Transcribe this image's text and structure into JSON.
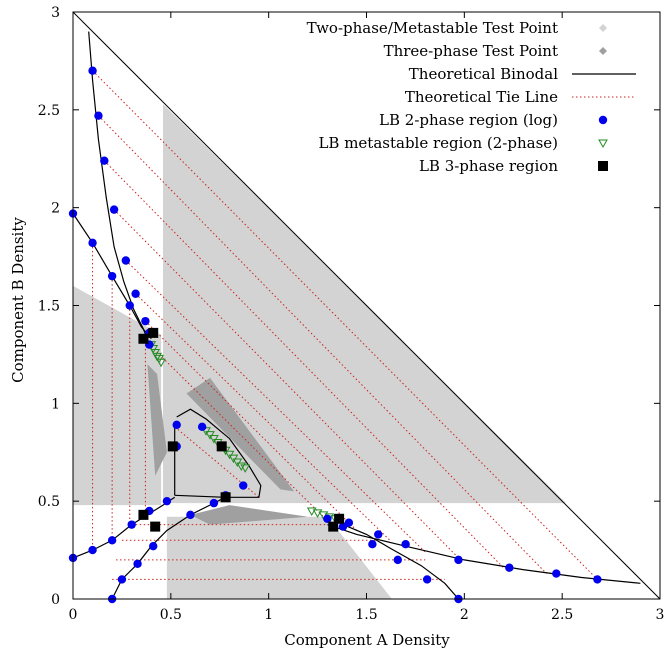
{
  "chart_data": {
    "type": "scatter",
    "xlabel": "Component A Density",
    "ylabel": "Component B Density",
    "xlim": [
      0,
      3
    ],
    "ylim": [
      0,
      3
    ],
    "x_ticks": [
      "0",
      "0.5",
      "1",
      "1.5",
      "2",
      "2.5",
      "3"
    ],
    "y_ticks": [
      "0",
      "0.5",
      "1",
      "1.5",
      "2",
      "2.5",
      "3"
    ],
    "grid": false,
    "legend_position": "top-right",
    "legend": [
      {
        "label": "Two-phase/Metastable Test Point",
        "marker": "diamond",
        "color": "#d3d3d3"
      },
      {
        "label": "Three-phase Test Point",
        "marker": "diamond",
        "color": "#a0a0a0"
      },
      {
        "label": "Theoretical Binodal",
        "marker": "line",
        "color": "#000000"
      },
      {
        "label": "Theoretical Tie Line",
        "marker": "dotted-line",
        "color": "#cc2222"
      },
      {
        "label": "LB 2-phase region (log)",
        "marker": "circle",
        "color": "#0000ee"
      },
      {
        "label": "LB metastable region (2-phase)",
        "marker": "triangle-down-open",
        "color": "#228b22"
      },
      {
        "label": "LB 3-phase region",
        "marker": "square",
        "color": "#000000"
      }
    ],
    "test_regions": {
      "two_phase": [
        [
          [
            0.46,
            2.53
          ],
          [
            0.46,
            0.49
          ],
          [
            2.52,
            0.49
          ]
        ],
        [
          [
            0.48,
            0.0
          ],
          [
            1.63,
            0.0
          ],
          [
            1.3,
            0.42
          ],
          [
            0.48,
            0.42
          ]
        ],
        [
          [
            0.0,
            1.6
          ],
          [
            0.0,
            0.48
          ],
          [
            0.45,
            0.48
          ],
          [
            0.45,
            1.35
          ]
        ]
      ],
      "three_phase": [
        [
          [
            0.58,
            1.05
          ],
          [
            0.7,
            1.13
          ],
          [
            1.13,
            0.55
          ],
          [
            1.06,
            0.56
          ]
        ],
        [
          [
            0.6,
            0.43
          ],
          [
            0.8,
            0.48
          ],
          [
            1.2,
            0.42
          ],
          [
            0.7,
            0.38
          ]
        ],
        [
          [
            0.38,
            1.2
          ],
          [
            0.43,
            1.15
          ],
          [
            0.48,
            0.75
          ],
          [
            0.42,
            0.63
          ]
        ]
      ]
    },
    "binodal": [
      [
        [
          0.08,
          2.9
        ],
        [
          0.1,
          2.65
        ],
        [
          0.13,
          2.35
        ],
        [
          0.17,
          2.05
        ],
        [
          0.21,
          1.8
        ],
        [
          0.26,
          1.62
        ],
        [
          0.31,
          1.48
        ],
        [
          0.36,
          1.38
        ],
        [
          0.39,
          1.3
        ]
      ],
      [
        [
          0.0,
          1.97
        ],
        [
          0.1,
          1.82
        ],
        [
          0.2,
          1.65
        ],
        [
          0.29,
          1.5
        ],
        [
          0.35,
          1.39
        ],
        [
          0.4,
          1.33
        ]
      ],
      [
        [
          0.52,
          0.88
        ],
        [
          0.52,
          0.53
        ]
      ],
      [
        [
          0.52,
          0.53
        ],
        [
          0.78,
          0.52
        ],
        [
          0.95,
          0.52
        ],
        [
          0.96,
          0.58
        ],
        [
          0.9,
          0.68
        ],
        [
          0.8,
          0.82
        ],
        [
          0.68,
          0.92
        ],
        [
          0.6,
          0.97
        ],
        [
          0.53,
          0.93
        ]
      ],
      [
        [
          0.0,
          0.21
        ],
        [
          0.1,
          0.25
        ],
        [
          0.2,
          0.3
        ],
        [
          0.3,
          0.38
        ],
        [
          0.38,
          0.43
        ],
        [
          0.46,
          0.48
        ],
        [
          0.52,
          0.52
        ]
      ],
      [
        [
          0.2,
          0.0
        ],
        [
          0.25,
          0.1
        ],
        [
          0.33,
          0.18
        ],
        [
          0.4,
          0.27
        ],
        [
          0.48,
          0.35
        ],
        [
          0.6,
          0.43
        ],
        [
          0.72,
          0.49
        ],
        [
          0.78,
          0.52
        ]
      ],
      [
        [
          1.3,
          0.38
        ],
        [
          1.45,
          0.33
        ],
        [
          1.7,
          0.27
        ],
        [
          2.0,
          0.2
        ],
        [
          2.3,
          0.15
        ],
        [
          2.6,
          0.11
        ],
        [
          2.9,
          0.08
        ]
      ],
      [
        [
          1.97,
          0.0
        ],
        [
          1.9,
          0.08
        ],
        [
          1.78,
          0.17
        ],
        [
          1.62,
          0.26
        ],
        [
          1.5,
          0.33
        ],
        [
          1.38,
          0.38
        ],
        [
          1.34,
          0.41
        ]
      ]
    ],
    "tie_lines": [
      [
        [
          0.1,
          2.7
        ],
        [
          2.68,
          0.1
        ]
      ],
      [
        [
          0.13,
          2.47
        ],
        [
          2.42,
          0.13
        ]
      ],
      [
        [
          0.16,
          2.24
        ],
        [
          2.2,
          0.16
        ]
      ],
      [
        [
          0.21,
          1.99
        ],
        [
          1.98,
          0.2
        ]
      ],
      [
        [
          0.27,
          1.73
        ],
        [
          1.8,
          0.24
        ]
      ],
      [
        [
          0.32,
          1.56
        ],
        [
          1.62,
          0.3
        ]
      ],
      [
        [
          0.37,
          1.42
        ],
        [
          1.45,
          0.35
        ]
      ],
      [
        [
          0.37,
          1.32
        ],
        [
          1.3,
          0.4
        ]
      ],
      [
        [
          0.1,
          1.82
        ],
        [
          0.1,
          0.25
        ]
      ],
      [
        [
          0.2,
          1.65
        ],
        [
          0.2,
          0.3
        ]
      ],
      [
        [
          0.29,
          1.5
        ],
        [
          0.29,
          0.38
        ]
      ],
      [
        [
          0.37,
          1.36
        ],
        [
          0.37,
          0.43
        ]
      ],
      [
        [
          0.3,
          0.38
        ],
        [
          1.3,
          0.38
        ]
      ],
      [
        [
          0.25,
          0.3
        ],
        [
          1.55,
          0.3
        ]
      ],
      [
        [
          0.22,
          0.2
        ],
        [
          1.8,
          0.2
        ]
      ],
      [
        [
          0.2,
          0.1
        ],
        [
          1.9,
          0.1
        ]
      ],
      [
        [
          0.52,
          0.88
        ],
        [
          0.95,
          0.52
        ]
      ]
    ],
    "lb_2phase": [
      [
        0.1,
        2.7
      ],
      [
        0.13,
        2.47
      ],
      [
        0.16,
        2.24
      ],
      [
        0.21,
        1.99
      ],
      [
        0.27,
        1.73
      ],
      [
        0.32,
        1.56
      ],
      [
        0.37,
        1.42
      ],
      [
        0.39,
        1.3
      ],
      [
        0.0,
        1.97
      ],
      [
        0.1,
        1.82
      ],
      [
        0.2,
        1.65
      ],
      [
        0.29,
        1.5
      ],
      [
        0.39,
        1.36
      ],
      [
        0.0,
        0.21
      ],
      [
        0.1,
        0.25
      ],
      [
        0.2,
        0.3
      ],
      [
        0.3,
        0.38
      ],
      [
        0.39,
        0.45
      ],
      [
        0.48,
        0.5
      ],
      [
        0.6,
        0.43
      ],
      [
        0.72,
        0.49
      ],
      [
        0.2,
        0.0
      ],
      [
        0.25,
        0.1
      ],
      [
        0.33,
        0.18
      ],
      [
        0.41,
        0.27
      ],
      [
        0.53,
        0.89
      ],
      [
        0.53,
        0.78
      ],
      [
        0.66,
        0.88
      ],
      [
        0.87,
        0.58
      ],
      [
        0.78,
        0.53
      ],
      [
        1.3,
        0.41
      ],
      [
        1.41,
        0.39
      ],
      [
        1.56,
        0.33
      ],
      [
        1.7,
        0.28
      ],
      [
        1.97,
        0.2
      ],
      [
        2.23,
        0.16
      ],
      [
        2.47,
        0.13
      ],
      [
        2.68,
        0.1
      ],
      [
        1.97,
        0.0
      ],
      [
        1.81,
        0.1
      ],
      [
        1.66,
        0.2
      ],
      [
        1.53,
        0.28
      ],
      [
        1.38,
        0.37
      ]
    ],
    "lb_metastable": [
      [
        0.4,
        1.3
      ],
      [
        0.41,
        1.28
      ],
      [
        0.42,
        1.26
      ],
      [
        0.43,
        1.24
      ],
      [
        0.44,
        1.23
      ],
      [
        0.45,
        1.21
      ],
      [
        0.68,
        0.86
      ],
      [
        0.7,
        0.84
      ],
      [
        0.72,
        0.82
      ],
      [
        0.74,
        0.8
      ],
      [
        0.76,
        0.78
      ],
      [
        0.78,
        0.76
      ],
      [
        0.8,
        0.74
      ],
      [
        0.82,
        0.72
      ],
      [
        0.84,
        0.7
      ],
      [
        0.86,
        0.68
      ],
      [
        0.88,
        0.67
      ],
      [
        1.22,
        0.45
      ],
      [
        1.25,
        0.44
      ],
      [
        1.28,
        0.43
      ],
      [
        1.31,
        0.42
      ],
      [
        1.34,
        0.41
      ]
    ],
    "lb_3phase": [
      [
        0.36,
        1.33
      ],
      [
        0.41,
        1.36
      ],
      [
        0.51,
        0.78
      ],
      [
        0.76,
        0.78
      ],
      [
        0.78,
        0.52
      ],
      [
        0.36,
        0.43
      ],
      [
        0.42,
        0.37
      ],
      [
        1.33,
        0.37
      ],
      [
        1.36,
        0.41
      ]
    ]
  }
}
